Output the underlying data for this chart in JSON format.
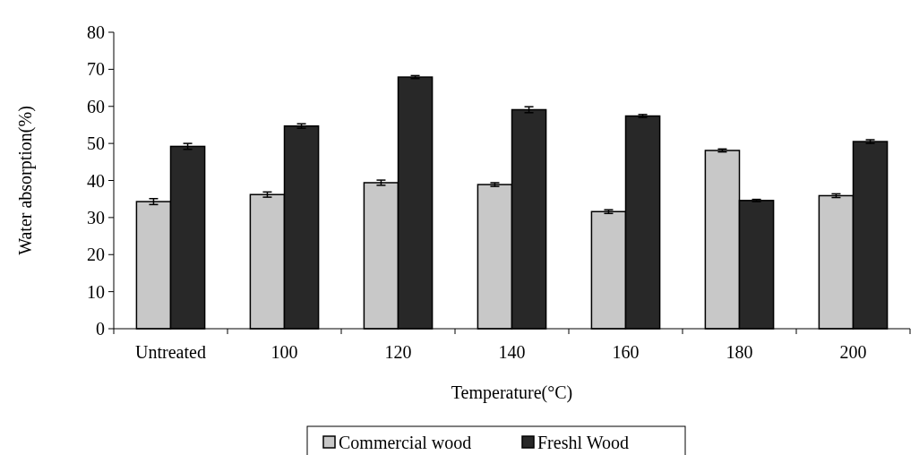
{
  "chart_data": {
    "type": "bar",
    "xlabel": "Temperature(°C)",
    "ylabel": "Water absorption(%)",
    "categories": [
      "Untreated",
      "100",
      "120",
      "140",
      "160",
      "180",
      "200"
    ],
    "series": [
      {
        "name": "Commercial wood",
        "color": "#c8c8c8",
        "values": [
          34.3,
          36.2,
          39.4,
          38.9,
          31.6,
          48.1,
          35.9
        ],
        "errors": [
          0.8,
          0.7,
          0.7,
          0.5,
          0.5,
          0.4,
          0.5
        ]
      },
      {
        "name": "Freshl Wood",
        "color": "#282828",
        "values": [
          49.2,
          54.7,
          67.9,
          59.1,
          57.4,
          34.6,
          50.5
        ],
        "errors": [
          0.8,
          0.6,
          0.4,
          0.8,
          0.4,
          0.3,
          0.5
        ]
      }
    ],
    "ylim": [
      0,
      80
    ],
    "yticks": [
      0,
      10,
      20,
      30,
      40,
      50,
      60,
      70,
      80
    ],
    "grid": false,
    "legend": "bottom"
  }
}
